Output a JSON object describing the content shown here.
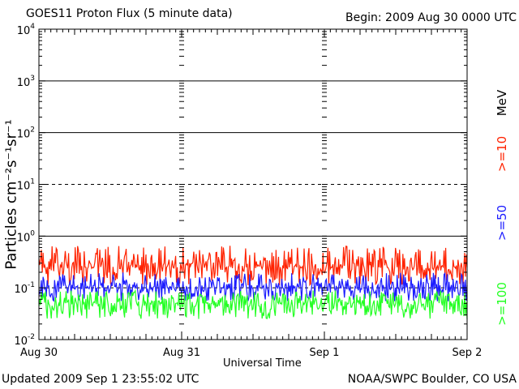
{
  "header": {
    "title": "GOES11 Proton Flux (5 minute data)",
    "begin": "Begin: 2009 Aug 30 0000 UTC"
  },
  "footer": {
    "updated": "Updated 2009 Sep  1 23:55:02 UTC",
    "credit": "NOAA/SWPC Boulder, CO USA"
  },
  "legend": {
    "unit": "MeV",
    "items": [
      {
        "label": ">=10",
        "color": "#ff2200"
      },
      {
        "label": ">=50",
        "color": "#1c1cff"
      },
      {
        "label": ">=100",
        "color": "#22ff22"
      }
    ]
  },
  "chart_data": {
    "type": "line",
    "title": "GOES11 Proton Flux (5 minute data)",
    "xlabel": "Universal Time",
    "ylabel": "Particles cm⁻²s⁻¹sr⁻¹",
    "yscale": "log",
    "ylim": [
      0.01,
      10000
    ],
    "y_ticks": [
      {
        "base": "10",
        "exp": "-2"
      },
      {
        "base": "10",
        "exp": "-1"
      },
      {
        "base": "10",
        "exp": "0"
      },
      {
        "base": "10",
        "exp": "1"
      },
      {
        "base": "10",
        "exp": "2"
      },
      {
        "base": "10",
        "exp": "3"
      },
      {
        "base": "10",
        "exp": "4"
      }
    ],
    "x_ticks": [
      "Aug 30",
      "Aug 31",
      "Sep 1",
      "Sep 2"
    ],
    "xlim_days": [
      0,
      3
    ],
    "gridlines": {
      "solid": [
        1,
        100,
        1000
      ],
      "dashed": [
        0.1,
        10
      ]
    },
    "series": [
      {
        "name": ">=10 MeV",
        "color": "#ff2200",
        "typical": 0.25,
        "min": 0.11,
        "max": 0.65
      },
      {
        "name": ">=50 MeV",
        "color": "#1c1cff",
        "typical": 0.1,
        "min": 0.055,
        "max": 0.2
      },
      {
        "name": ">=100 MeV",
        "color": "#22ff22",
        "typical": 0.05,
        "min": 0.025,
        "max": 0.09
      }
    ]
  }
}
